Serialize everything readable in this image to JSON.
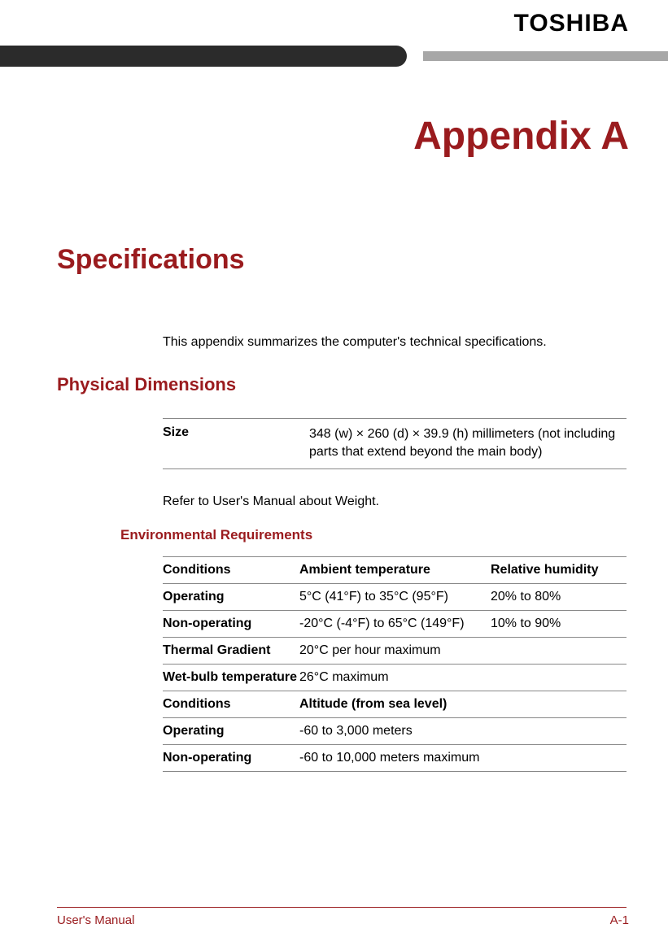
{
  "brand": "TOSHIBA",
  "accent_color": "#9a1b1e",
  "bar_dark_color": "#2b2b2b",
  "bar_light_color": "#a7a7a7",
  "title": "Appendix A",
  "h1": "Specifications",
  "intro": "This appendix summarizes the computer's technical specifications.",
  "h2": "Physical Dimensions",
  "size_table": {
    "label": "Size",
    "value": "348 (w) × 260 (d) × 39.9 (h) millimeters (not including parts that extend beyond the main body)"
  },
  "weight_note": "Refer to User's Manual about Weight.",
  "h3": "Environmental Requirements",
  "env_table": {
    "rows": [
      {
        "c1": "Conditions",
        "c2": "Ambient temperature",
        "c3": "Relative humidity",
        "header": true
      },
      {
        "c1": "Operating",
        "c2": "5°C (41°F) to 35°C (95°F)",
        "c3": "20% to 80%",
        "c1_bold": true
      },
      {
        "c1": "Non-operating",
        "c2": "-20°C (-4°F) to 65°C (149°F)",
        "c3": "10% to 90%",
        "c1_bold": true
      },
      {
        "c1": "Thermal Gradient",
        "c2": "20°C per hour maximum",
        "c3": "",
        "c1_bold": true
      },
      {
        "c1": "Wet-bulb temperature",
        "c2": "26°C maximum",
        "c3": "",
        "c1_bold": true
      },
      {
        "c1": "Conditions",
        "c2": "Altitude (from sea level)",
        "c3": "",
        "header": true
      },
      {
        "c1": "Operating",
        "c2": "-60 to 3,000 meters",
        "c3": "",
        "c1_bold": true
      },
      {
        "c1": "Non-operating",
        "c2": "-60 to 10,000 meters maximum",
        "c3": "",
        "c1_bold": true
      }
    ]
  },
  "footer": {
    "left": "User's Manual",
    "right": "A-1"
  }
}
